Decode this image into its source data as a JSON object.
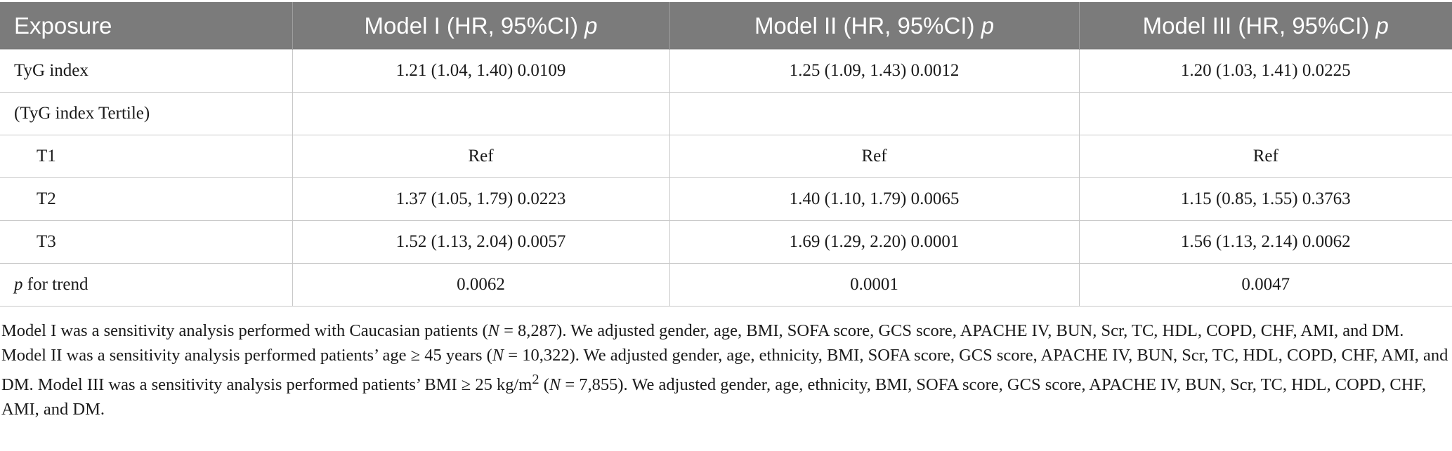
{
  "table": {
    "headers": [
      {
        "text": "Exposure",
        "italic": ""
      },
      {
        "text": "Model I (HR, 95%CI) ",
        "italic": "p"
      },
      {
        "text": "Model II (HR, 95%CI) ",
        "italic": "p"
      },
      {
        "text": "Model III (HR, 95%CI) ",
        "italic": "p"
      }
    ],
    "rows": [
      {
        "label": "TyG index",
        "cells": [
          "1.21 (1.04, 1.40) 0.0109",
          "1.25 (1.09, 1.43) 0.0012",
          "1.20 (1.03, 1.41) 0.0225"
        ]
      },
      {
        "label": "(TyG index Tertile)",
        "cells": [
          "",
          "",
          ""
        ]
      },
      {
        "label": "T1",
        "cells": [
          "Ref",
          "Ref",
          "Ref"
        ]
      },
      {
        "label": "T2",
        "cells": [
          "1.37 (1.05, 1.79) 0.0223",
          "1.40 (1.10, 1.79) 0.0065",
          "1.15 (0.85, 1.55) 0.3763"
        ]
      },
      {
        "label": "T3",
        "cells": [
          "1.52 (1.13, 2.04) 0.0057",
          "1.69 (1.29, 2.20) 0.0001",
          "1.56 (1.13, 2.14) 0.0062"
        ]
      },
      {
        "label_italic": "p",
        "label": " for trend",
        "cells": [
          "0.0062",
          "0.0001",
          "0.0047"
        ]
      }
    ]
  },
  "notes": {
    "n1_a": "Model I was a sensitivity analysis performed with Caucasian patients (",
    "n1_n": "N",
    "n1_b": " = 8,287). We adjusted gender, age, BMI, SOFA score, GCS score, APACHE IV, BUN, Scr, TC, HDL, COPD, CHF, AMI, and DM.",
    "n2_a": "Model II was a sensitivity analysis performed patients’ age ≥ 45 years (",
    "n2_n": "N",
    "n2_b": " = 10,322). We adjusted gender, age, ethnicity, BMI, SOFA score, GCS score, APACHE IV, BUN, Scr, TC, HDL, COPD, CHF, AMI, and DM. Model III was a sensitivity analysis performed patients’ BMI ≥ 25 kg/m",
    "n2_sup": "2",
    "n2_c": " (",
    "n2_n2": "N",
    "n2_d": " = 7,855). We adjusted gender, age, ethnicity, BMI, SOFA score, GCS score, APACHE IV, BUN, Scr, TC, HDL, COPD, CHF, AMI, and DM."
  }
}
